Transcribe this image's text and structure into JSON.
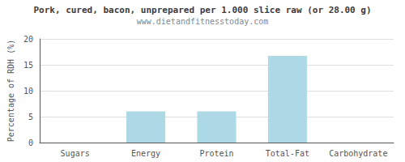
{
  "chart_data": {
    "type": "bar",
    "title": "Pork, cured, bacon, unprepared per 1.000 slice raw (or 28.00 g)",
    "subtitle": "www.dietandfitnesstoday.com",
    "categories": [
      "Sugars",
      "Energy",
      "Protein",
      "Total-Fat",
      "Carbohydrate"
    ],
    "values": [
      0,
      6.0,
      6.0,
      16.7,
      0
    ],
    "color": "#add8e6",
    "ylabel": "Percentage of RDH (%)",
    "ylim": [
      0,
      20
    ],
    "yticks": [
      0,
      5,
      10,
      15,
      20
    ],
    "grid": true
  }
}
